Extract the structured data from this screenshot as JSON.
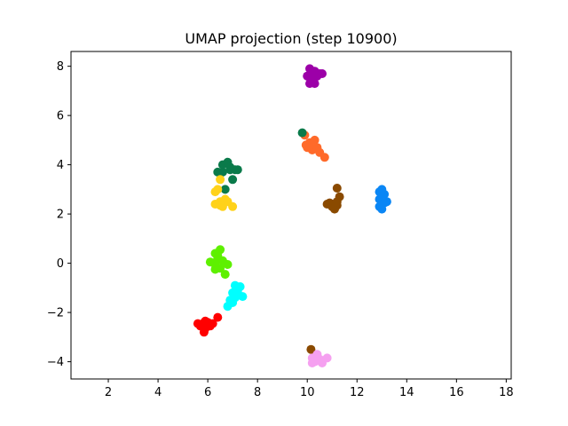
{
  "chart_data": {
    "type": "scatter",
    "title": "UMAP projection (step 10900)",
    "xlabel": "",
    "ylabel": "",
    "xlim": [
      0.5,
      18.2
    ],
    "ylim": [
      -4.7,
      8.6
    ],
    "xticks": [
      2,
      4,
      6,
      8,
      10,
      12,
      14,
      16,
      18
    ],
    "yticks": [
      -4,
      -2,
      0,
      2,
      4,
      6,
      8
    ],
    "grid": false,
    "series": [
      {
        "color": "#9c00a8",
        "points": [
          [
            10.1,
            7.9
          ],
          [
            10.3,
            7.8
          ],
          [
            10.5,
            7.7
          ],
          [
            10.0,
            7.6
          ],
          [
            10.2,
            7.5
          ],
          [
            10.4,
            7.6
          ],
          [
            10.6,
            7.7
          ],
          [
            10.1,
            7.3
          ],
          [
            10.3,
            7.3
          ],
          [
            10.2,
            7.7
          ]
        ]
      },
      {
        "color": "#ff6a2a",
        "points": [
          [
            9.9,
            5.2
          ],
          [
            10.1,
            4.9
          ],
          [
            10.3,
            5.0
          ],
          [
            10.0,
            4.7
          ],
          [
            10.2,
            4.6
          ],
          [
            10.4,
            4.7
          ],
          [
            10.5,
            4.5
          ],
          [
            10.7,
            4.3
          ],
          [
            10.1,
            4.8
          ],
          [
            9.95,
            4.8
          ]
        ]
      },
      {
        "color": "#0a7a4a",
        "points": [
          [
            9.8,
            5.3
          ],
          [
            6.6,
            4.0
          ],
          [
            6.8,
            4.1
          ],
          [
            6.4,
            3.7
          ],
          [
            6.9,
            3.9
          ],
          [
            7.1,
            3.8
          ],
          [
            7.2,
            3.8
          ],
          [
            6.6,
            3.7
          ],
          [
            7.0,
            3.4
          ],
          [
            6.7,
            3.0
          ],
          [
            6.9,
            3.8
          ]
        ]
      },
      {
        "color": "#ffd21a",
        "points": [
          [
            6.5,
            3.4
          ],
          [
            6.4,
            3.0
          ],
          [
            6.3,
            2.9
          ],
          [
            6.5,
            2.5
          ],
          [
            6.3,
            2.4
          ],
          [
            6.7,
            2.6
          ],
          [
            6.6,
            2.3
          ],
          [
            6.8,
            2.5
          ],
          [
            7.0,
            2.3
          ],
          [
            6.5,
            2.35
          ]
        ]
      },
      {
        "color": "#8a4a00",
        "points": [
          [
            11.2,
            3.05
          ],
          [
            11.3,
            2.7
          ],
          [
            11.0,
            2.4
          ],
          [
            10.9,
            2.45
          ],
          [
            11.1,
            2.2
          ],
          [
            11.2,
            2.35
          ],
          [
            10.8,
            2.4
          ],
          [
            11.0,
            2.3
          ],
          [
            11.2,
            2.5
          ]
        ]
      },
      {
        "color": "#0a86f5",
        "points": [
          [
            12.9,
            2.9
          ],
          [
            13.0,
            3.0
          ],
          [
            13.1,
            2.8
          ],
          [
            12.9,
            2.6
          ],
          [
            13.0,
            2.4
          ],
          [
            13.2,
            2.5
          ],
          [
            12.9,
            2.3
          ],
          [
            13.0,
            2.2
          ],
          [
            13.1,
            2.45
          ]
        ]
      },
      {
        "color": "#5ef000",
        "points": [
          [
            6.5,
            0.55
          ],
          [
            6.3,
            0.4
          ],
          [
            6.4,
            0.2
          ],
          [
            6.6,
            0.1
          ],
          [
            6.1,
            0.05
          ],
          [
            6.3,
            -0.05
          ],
          [
            6.5,
            -0.2
          ],
          [
            6.3,
            -0.25
          ],
          [
            6.8,
            -0.05
          ],
          [
            6.7,
            -0.45
          ],
          [
            6.4,
            0.3
          ]
        ]
      },
      {
        "color": "#00ffff",
        "points": [
          [
            7.1,
            -0.9
          ],
          [
            7.3,
            -0.95
          ],
          [
            7.2,
            -1.1
          ],
          [
            7.0,
            -1.2
          ],
          [
            7.4,
            -1.35
          ],
          [
            7.1,
            -1.4
          ],
          [
            6.9,
            -1.5
          ],
          [
            7.0,
            -1.6
          ],
          [
            6.8,
            -1.75
          ],
          [
            7.2,
            -1.2
          ]
        ]
      },
      {
        "color": "#ff0000",
        "points": [
          [
            6.4,
            -2.2
          ],
          [
            5.6,
            -2.45
          ],
          [
            5.8,
            -2.45
          ],
          [
            5.9,
            -2.35
          ],
          [
            6.0,
            -2.5
          ],
          [
            5.7,
            -2.55
          ],
          [
            6.1,
            -2.55
          ],
          [
            6.2,
            -2.45
          ],
          [
            5.9,
            -2.65
          ],
          [
            5.85,
            -2.8
          ],
          [
            6.0,
            -2.4
          ]
        ]
      },
      {
        "color": "#8a4a00",
        "points": [
          [
            10.15,
            -3.5
          ]
        ]
      },
      {
        "color": "#f5a0f0",
        "points": [
          [
            10.4,
            -3.7
          ],
          [
            10.2,
            -3.85
          ],
          [
            10.5,
            -3.9
          ],
          [
            10.8,
            -3.85
          ],
          [
            10.3,
            -4.0
          ],
          [
            10.6,
            -4.05
          ],
          [
            10.2,
            -4.05
          ],
          [
            10.4,
            -3.95
          ]
        ]
      }
    ]
  }
}
